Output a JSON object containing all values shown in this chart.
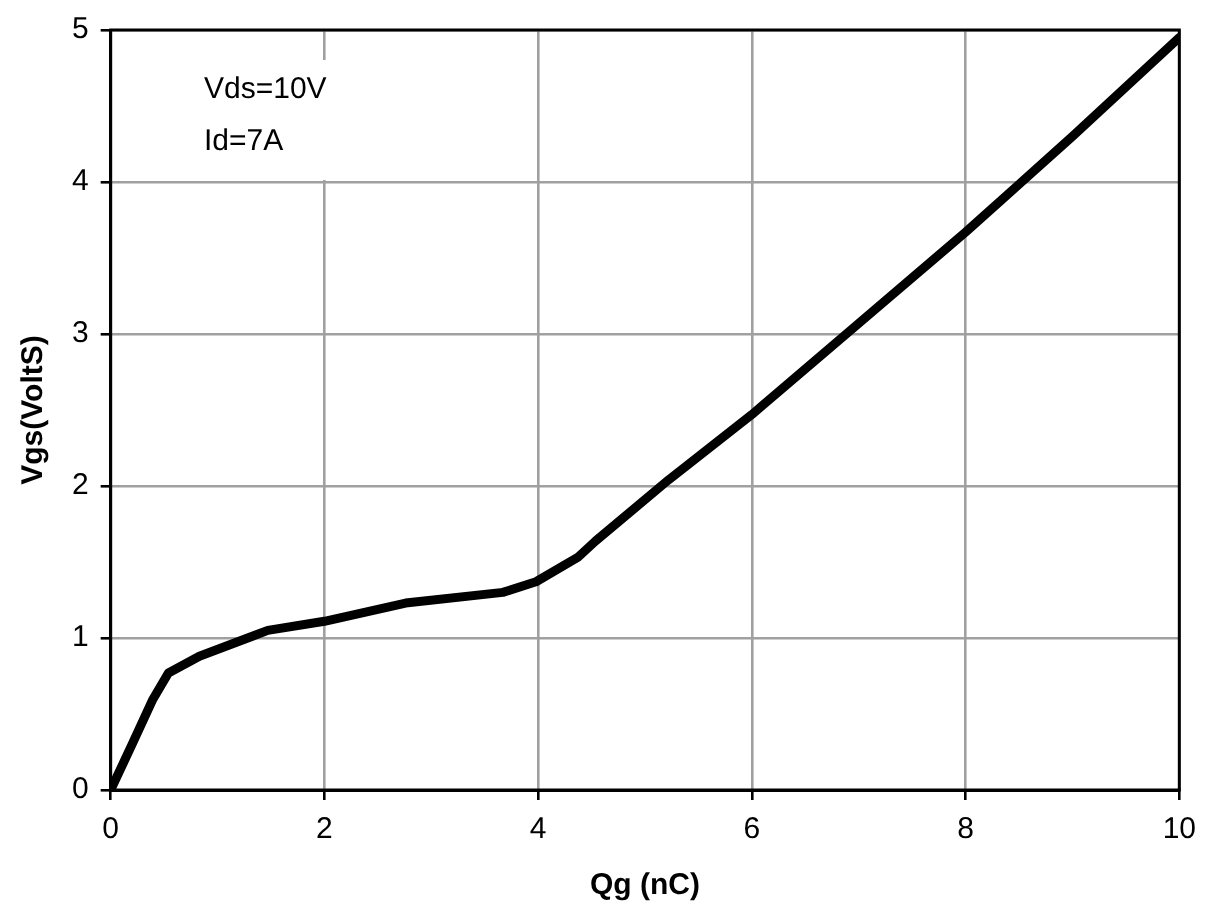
{
  "chart_data": {
    "type": "line",
    "xlabel": "Qg (nC)",
    "ylabel": "Vgs(VoltS)",
    "x": [
      0,
      0.2,
      0.39,
      0.54,
      0.83,
      1.47,
      2.0,
      2.76,
      3.67,
      3.98,
      4.37,
      4.54,
      5.22,
      6.0,
      7.0,
      8.0,
      9.0,
      10.0
    ],
    "series": [
      {
        "color": "#000000",
        "values": [
          0,
          0.3,
          0.59,
          0.77,
          0.88,
          1.05,
          1.11,
          1.23,
          1.3,
          1.37,
          1.53,
          1.64,
          2.04,
          2.47,
          3.07,
          3.67,
          4.3,
          4.95
        ]
      }
    ],
    "xlim": [
      0,
      10
    ],
    "xticks": [
      0,
      2,
      4,
      6,
      8,
      10
    ],
    "ylim": [
      0,
      5
    ],
    "yticks": [
      0,
      1,
      2,
      3,
      4,
      5
    ],
    "grid": true,
    "legend": false,
    "marker": "none",
    "line_style": "solid",
    "annotations": [
      "Vds=10V",
      "Id=7A"
    ]
  }
}
